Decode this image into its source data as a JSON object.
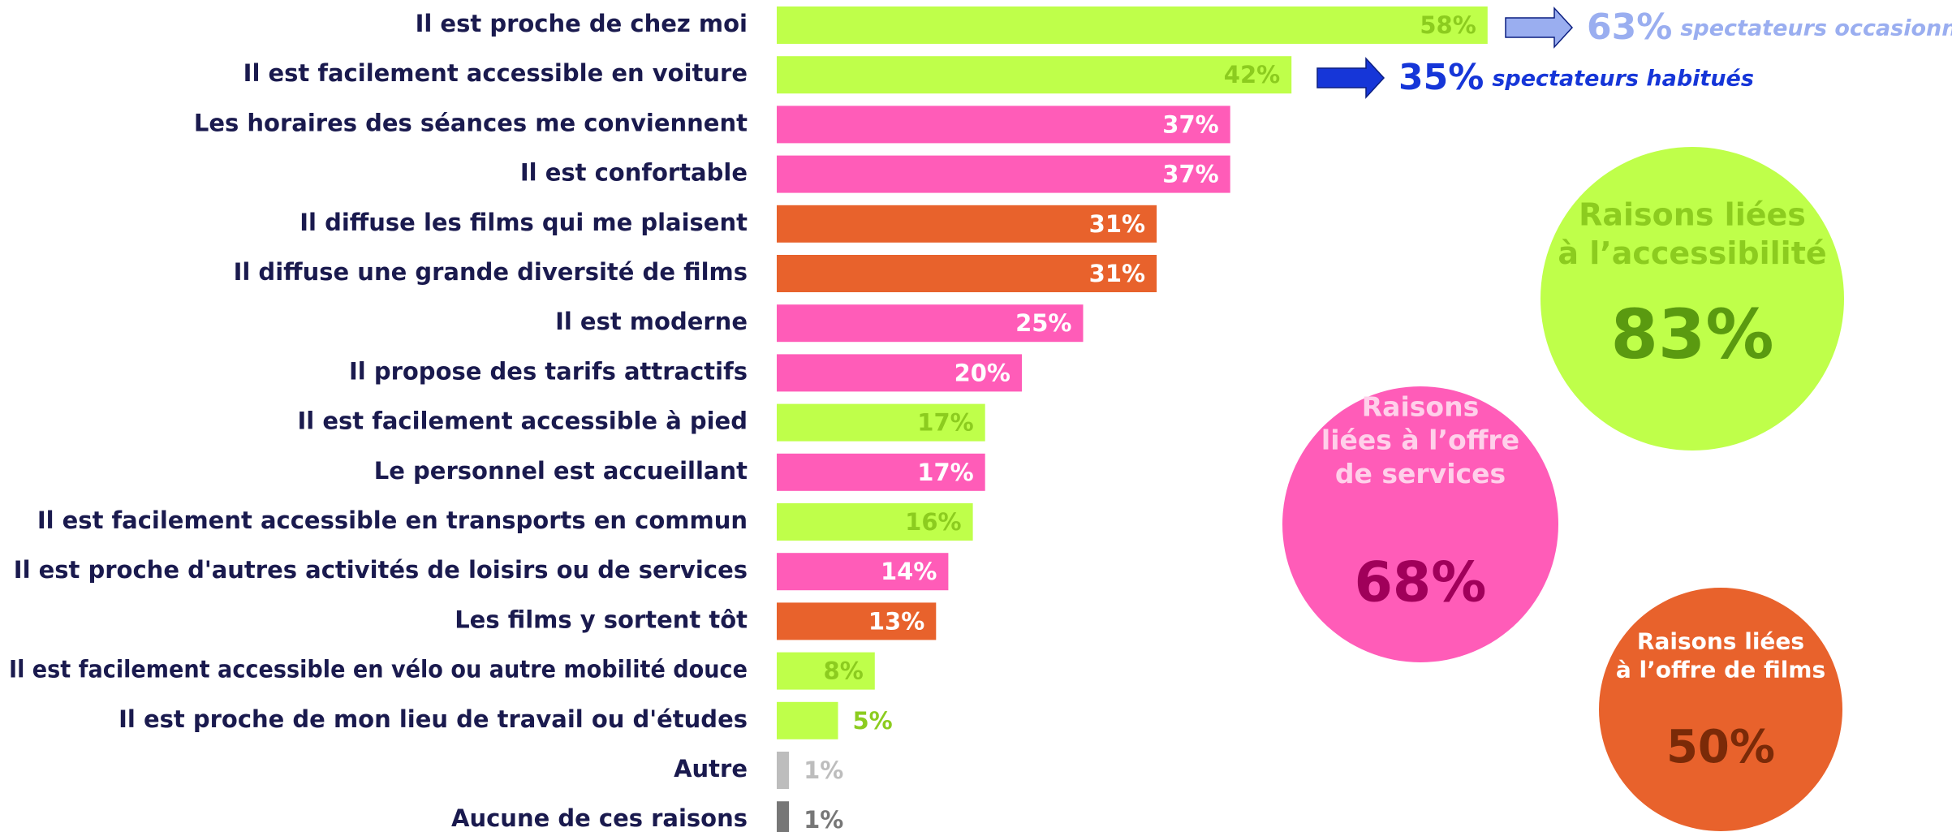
{
  "chart_data": {
    "type": "hbar",
    "categories": [
      "Il est proche de chez moi",
      "Il est facilement accessible en voiture",
      "Les horaires des séances me conviennent",
      "Il est confortable",
      "Il diffuse les films qui me plaisent",
      "Il diffuse une grande diversité de films",
      "Il est moderne",
      "Il propose des tarifs attractifs",
      "Il est facilement accessible à pied",
      "Le personnel est accueillant",
      "Il est facilement accessible en transports en commun",
      "Il est proche d'autres activités de loisirs ou de services",
      "Les films y sortent tôt",
      "Il est facilement accessible en vélo ou autre mobilité douce",
      "Il est proche de mon lieu de travail ou d'études",
      "Autre",
      "Aucune de ces raisons"
    ],
    "values": [
      58,
      42,
      37,
      37,
      31,
      31,
      25,
      20,
      17,
      17,
      16,
      14,
      13,
      8,
      5,
      1,
      1
    ],
    "value_labels": [
      "58%",
      "42%",
      "37%",
      "37%",
      "31%",
      "31%",
      "25%",
      "20%",
      "17%",
      "17%",
      "16%",
      "14%",
      "13%",
      "8%",
      "5%",
      "1%",
      "1%"
    ],
    "colors": [
      "#bfff4a",
      "#bfff4a",
      "#ff5cb8",
      "#ff5cb8",
      "#e8622c",
      "#e8622c",
      "#ff5cb8",
      "#ff5cb8",
      "#bfff4a",
      "#ff5cb8",
      "#bfff4a",
      "#ff5cb8",
      "#e8622c",
      "#bfff4a",
      "#bfff4a",
      "#bdbdbd",
      "#777777"
    ],
    "label_colors": [
      "#8ccc1f",
      "#8ccc1f",
      "#ffffff",
      "#ffffff",
      "#ffffff",
      "#ffffff",
      "#ffffff",
      "#ffffff",
      "#8ccc1f",
      "#ffffff",
      "#8ccc1f",
      "#ffffff",
      "#ffffff",
      "#8ccc1f",
      "#8ccc1f",
      "#bdbdbd",
      "#777777"
    ],
    "annotations": [
      {
        "value_label": "63%",
        "text": "spectateurs occasionnels",
        "color": "#9aaef0"
      },
      {
        "value_label": "35%",
        "text": "spectateurs habitués",
        "color": "#1636d8"
      }
    ],
    "groups": [
      {
        "title": [
          "Raisons liées",
          "à l’accessibilité"
        ],
        "value_label": "83%",
        "color": "#bfff4a",
        "title_color": "#8ccc1f",
        "value_color": "#5a9a10"
      },
      {
        "title": [
          "Raisons",
          "liées à l’offre",
          "de services"
        ],
        "value_label": "68%",
        "color": "#ff5cb8",
        "title_color": "#ffd0ea",
        "value_color": "#a0005a"
      },
      {
        "title": [
          "Raisons liées",
          "à l’offre de films"
        ],
        "value_label": "50%",
        "color": "#e8622c",
        "title_color": "#ffffff",
        "value_color": "#7a2a08"
      }
    ]
  }
}
